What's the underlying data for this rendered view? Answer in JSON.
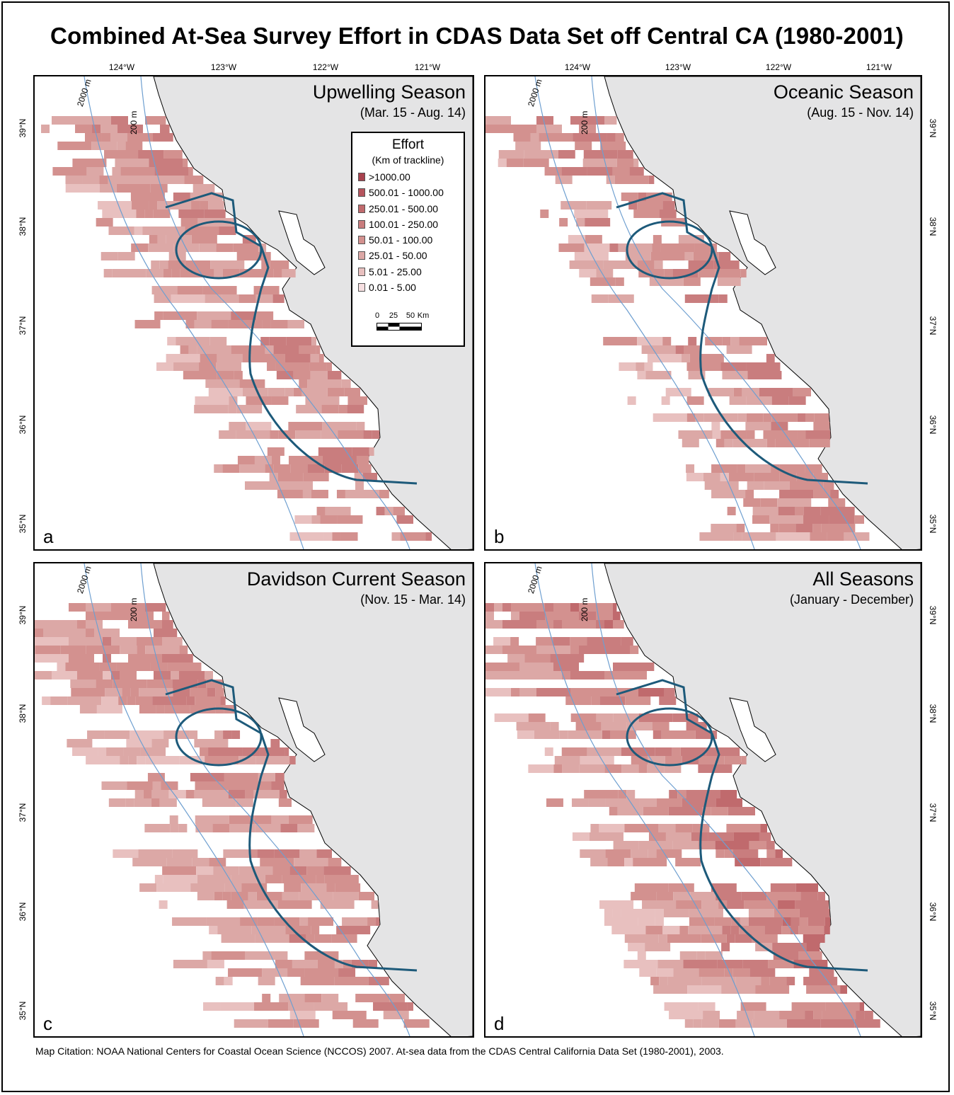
{
  "title": "Combined At-Sea Survey Effort in CDAS Data Set off Central CA (1980-2001)",
  "axes": {
    "lon_ticks": [
      "124°W",
      "123°W",
      "122°W",
      "121°W"
    ],
    "lat_ticks": [
      "39°N",
      "38°N",
      "37°N",
      "36°N",
      "35°N"
    ]
  },
  "isobaths": [
    "2000 m",
    "200 m"
  ],
  "panels": [
    {
      "label": "a",
      "title": "Upwelling Season",
      "subtitle": "(Mar. 15 - Aug. 14)"
    },
    {
      "label": "b",
      "title": "Oceanic Season",
      "subtitle": "(Aug. 15 - Nov. 14)"
    },
    {
      "label": "c",
      "title": "Davidson Current Season",
      "subtitle": "(Nov. 15 - Mar. 14)"
    },
    {
      "label": "d",
      "title": "All Seasons",
      "subtitle": "(January - December)"
    }
  ],
  "legend": {
    "title": "Effort",
    "subtitle": "(Km of trackline)",
    "classes": [
      {
        "label": ">1000.00",
        "color": "#a8424e"
      },
      {
        "label": "500.01 - 1000.00",
        "color": "#b6555e"
      },
      {
        "label": "250.01 - 500.00",
        "color": "#c06a6d"
      },
      {
        "label": "100.01 - 250.00",
        "color": "#c97d7e"
      },
      {
        "label": "50.01 - 100.00",
        "color": "#d3918f"
      },
      {
        "label": "25.01 - 50.00",
        "color": "#dca8a6"
      },
      {
        "label": "5.01 - 25.00",
        "color": "#e8c0bf"
      },
      {
        "label": "0.01 - 5.00",
        "color": "#f6dfe1"
      }
    ],
    "scale": {
      "labels": [
        "0",
        "25",
        "50",
        "Km"
      ]
    }
  },
  "colors": {
    "land": "#e4e4e5",
    "boundary": "#1d5a7a",
    "isobath": "#6e9fd0",
    "ocean": "#ffffff"
  },
  "citation": "Map Citation: NOAA National Centers for Coastal Ocean Science (NCCOS) 2007. At-sea data from the CDAS Central California Data Set (1980-2001), 2003."
}
